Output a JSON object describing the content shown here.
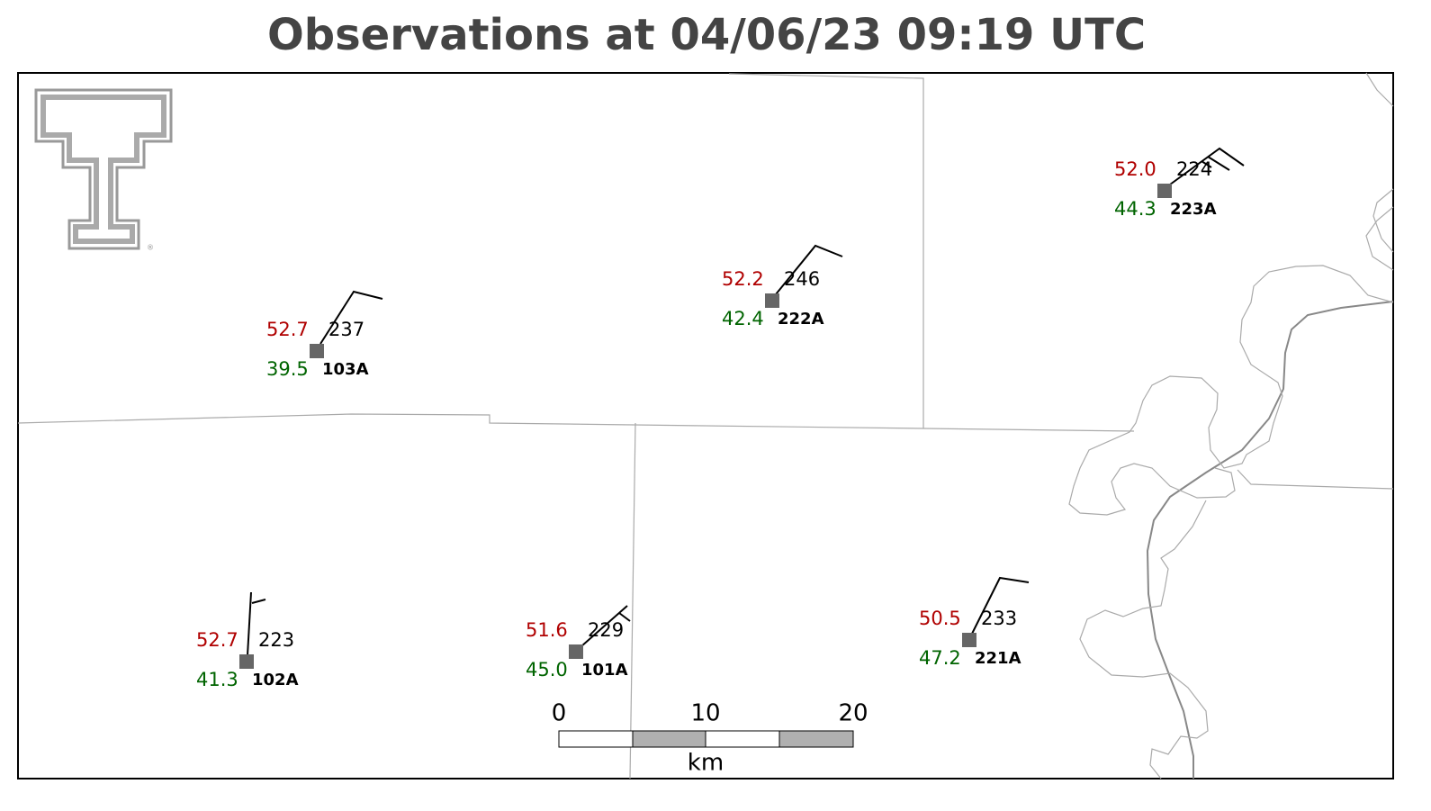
{
  "title": "Observations at 04/06/23 09:19 UTC",
  "stations": [
    {
      "id": "103A",
      "temperature": "52.7",
      "dewpoint": "39.5",
      "value": "237"
    },
    {
      "id": "222A",
      "temperature": "52.2",
      "dewpoint": "42.4",
      "value": "246"
    },
    {
      "id": "223A",
      "temperature": "52.0",
      "dewpoint": "44.3",
      "value": "224"
    },
    {
      "id": "102A",
      "temperature": "52.7",
      "dewpoint": "41.3",
      "value": "223"
    },
    {
      "id": "101A",
      "temperature": "51.6",
      "dewpoint": "45.0",
      "value": "229"
    },
    {
      "id": "221A",
      "temperature": "50.5",
      "dewpoint": "47.2",
      "value": "233"
    }
  ],
  "scale_bar": {
    "labels": [
      "0",
      "10",
      "20"
    ],
    "unit": "km"
  }
}
